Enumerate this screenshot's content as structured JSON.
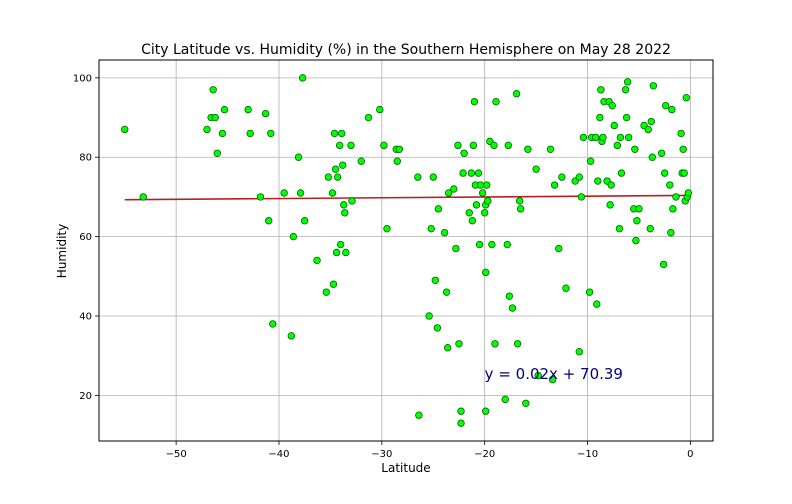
{
  "chart_data": {
    "type": "scatter",
    "title": "City Latitude vs. Humidity (%) in the Southern Hemisphere on  May 28 2022",
    "xlabel": "Latitude",
    "ylabel": "Humidity",
    "xlim": [
      -57.5,
      2.2
    ],
    "ylim": [
      8.5,
      104.5
    ],
    "xticks": [
      -50,
      -40,
      -30,
      -20,
      -10,
      0
    ],
    "yticks": [
      20,
      40,
      60,
      80,
      100
    ],
    "xtick_labels": [
      "−50",
      "−40",
      "−30",
      "−20",
      "−10",
      "0"
    ],
    "ytick_labels": [
      "20",
      "40",
      "60",
      "80",
      "100"
    ],
    "grid": true,
    "marker_color": "#00ff00",
    "marker_edge": "#006400",
    "regression": {
      "slope": 0.02,
      "intercept": 70.39,
      "x_range": [
        -55,
        -0.3
      ],
      "color": "#b22222"
    },
    "annotation": {
      "text": "y = 0.02x + 70.39",
      "x": -20,
      "y": 25.4,
      "color": "#000080"
    },
    "points": [
      [
        -55,
        87
      ],
      [
        -53.2,
        70
      ],
      [
        -47,
        87
      ],
      [
        -46.6,
        90
      ],
      [
        -46.4,
        97
      ],
      [
        -46.2,
        90
      ],
      [
        -46,
        81
      ],
      [
        -45.5,
        86
      ],
      [
        -45.3,
        92
      ],
      [
        -43,
        92
      ],
      [
        -42.8,
        86
      ],
      [
        -41.8,
        70
      ],
      [
        -41.3,
        91
      ],
      [
        -41,
        64
      ],
      [
        -40.8,
        86
      ],
      [
        -40.6,
        38
      ],
      [
        -39.5,
        71
      ],
      [
        -38.8,
        35
      ],
      [
        -38.6,
        60
      ],
      [
        -38.1,
        80
      ],
      [
        -37.9,
        71
      ],
      [
        -37.7,
        100
      ],
      [
        -37.5,
        64
      ],
      [
        -36.3,
        54
      ],
      [
        -35.4,
        46
      ],
      [
        -35.2,
        75
      ],
      [
        -34.8,
        71
      ],
      [
        -34.7,
        48
      ],
      [
        -34.6,
        86
      ],
      [
        -34.5,
        77
      ],
      [
        -34.4,
        56
      ],
      [
        -34.3,
        75
      ],
      [
        -34.1,
        83
      ],
      [
        -34,
        58
      ],
      [
        -33.9,
        86
      ],
      [
        -33.8,
        78
      ],
      [
        -33.7,
        68
      ],
      [
        -33.6,
        66
      ],
      [
        -33.5,
        56
      ],
      [
        -33,
        83
      ],
      [
        -32.9,
        69
      ],
      [
        -32,
        79
      ],
      [
        -31.3,
        90
      ],
      [
        -30.2,
        92
      ],
      [
        -29.8,
        83
      ],
      [
        -29.5,
        62
      ],
      [
        -28.6,
        82
      ],
      [
        -28.5,
        79
      ],
      [
        -28.3,
        82
      ],
      [
        -26.5,
        75
      ],
      [
        -26.4,
        15
      ],
      [
        -25.4,
        40
      ],
      [
        -25.2,
        62
      ],
      [
        -25,
        75
      ],
      [
        -24.8,
        49
      ],
      [
        -24.6,
        37
      ],
      [
        -24.5,
        67
      ],
      [
        -23.9,
        61
      ],
      [
        -23.7,
        46
      ],
      [
        -23.6,
        32
      ],
      [
        -23.5,
        71
      ],
      [
        -23,
        72
      ],
      [
        -22.8,
        57
      ],
      [
        -22.6,
        83
      ],
      [
        -22.5,
        33
      ],
      [
        -22.3,
        13
      ],
      [
        -22.3,
        16
      ],
      [
        -22.1,
        76
      ],
      [
        -22,
        81
      ],
      [
        -21.5,
        66
      ],
      [
        -21.3,
        76
      ],
      [
        -21.2,
        64
      ],
      [
        -21.1,
        83
      ],
      [
        -21,
        94
      ],
      [
        -20.9,
        73
      ],
      [
        -20.8,
        68
      ],
      [
        -20.6,
        76
      ],
      [
        -20.5,
        58
      ],
      [
        -20.4,
        73
      ],
      [
        -20.2,
        71
      ],
      [
        -20,
        66
      ],
      [
        -19.9,
        68
      ],
      [
        -19.8,
        73
      ],
      [
        -19.7,
        69
      ],
      [
        -19.9,
        51
      ],
      [
        -19.9,
        16
      ],
      [
        -19.5,
        84
      ],
      [
        -19.3,
        58
      ],
      [
        -19.1,
        83
      ],
      [
        -19,
        33
      ],
      [
        -18.9,
        94
      ],
      [
        -18,
        19
      ],
      [
        -17.8,
        58
      ],
      [
        -17.7,
        83
      ],
      [
        -17.6,
        45
      ],
      [
        -17.3,
        42
      ],
      [
        -16.9,
        96
      ],
      [
        -16.8,
        33
      ],
      [
        -16.6,
        69
      ],
      [
        -16.5,
        67
      ],
      [
        -16,
        18
      ],
      [
        -15.8,
        82
      ],
      [
        -15,
        77
      ],
      [
        -14.8,
        25
      ],
      [
        -13.6,
        82
      ],
      [
        -13.4,
        24
      ],
      [
        -13.2,
        73
      ],
      [
        -12.8,
        57
      ],
      [
        -12.5,
        75
      ],
      [
        -12.1,
        47
      ],
      [
        -11.2,
        74
      ],
      [
        -10.8,
        31
      ],
      [
        -10.8,
        75
      ],
      [
        -10.6,
        70
      ],
      [
        -10.4,
        85
      ],
      [
        -9.8,
        46
      ],
      [
        -9.7,
        79
      ],
      [
        -9.6,
        85
      ],
      [
        -9.2,
        85
      ],
      [
        -9.1,
        43
      ],
      [
        -9,
        74
      ],
      [
        -8.8,
        90
      ],
      [
        -8.7,
        97
      ],
      [
        -8.6,
        84
      ],
      [
        -8.5,
        85
      ],
      [
        -8.4,
        94
      ],
      [
        -8.1,
        74
      ],
      [
        -7.9,
        94
      ],
      [
        -7.8,
        68
      ],
      [
        -7.7,
        73
      ],
      [
        -7.6,
        93
      ],
      [
        -7.4,
        88
      ],
      [
        -7.1,
        83
      ],
      [
        -6.9,
        62
      ],
      [
        -6.8,
        85
      ],
      [
        -6.7,
        76
      ],
      [
        -6.3,
        97
      ],
      [
        -6.2,
        90
      ],
      [
        -6.1,
        99
      ],
      [
        -6,
        85
      ],
      [
        -5.5,
        67
      ],
      [
        -5.4,
        82
      ],
      [
        -5.3,
        59
      ],
      [
        -5.2,
        64
      ],
      [
        -5,
        67
      ],
      [
        -4.5,
        88
      ],
      [
        -4.1,
        87
      ],
      [
        -3.9,
        62
      ],
      [
        -3.8,
        89
      ],
      [
        -3.7,
        80
      ],
      [
        -3.6,
        98
      ],
      [
        -2.8,
        81
      ],
      [
        -2.6,
        53
      ],
      [
        -2.5,
        76
      ],
      [
        -2.4,
        93
      ],
      [
        -2,
        73
      ],
      [
        -1.9,
        61
      ],
      [
        -1.8,
        92
      ],
      [
        -1.7,
        67
      ],
      [
        -1.4,
        70
      ],
      [
        -0.9,
        86
      ],
      [
        -0.8,
        76
      ],
      [
        -0.7,
        82
      ],
      [
        -0.6,
        76
      ],
      [
        -0.5,
        69
      ],
      [
        -0.4,
        95
      ],
      [
        -0.3,
        70
      ],
      [
        -0.2,
        71
      ]
    ]
  }
}
